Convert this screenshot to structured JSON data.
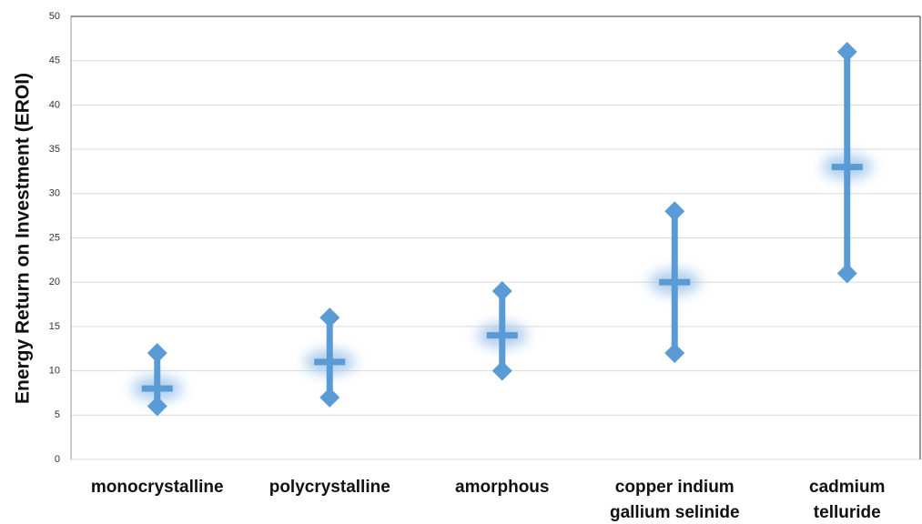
{
  "chart_data": {
    "type": "range",
    "y_axis_label": "Energy Return on Investment (EROI)",
    "categories": [
      "monocrystalline",
      "polycrystalline",
      "amorphous",
      "copper indium gallium selinide",
      "cadmium telluride"
    ],
    "high": [
      12,
      16,
      19,
      28,
      46
    ],
    "mid": [
      8,
      11,
      14,
      20,
      33
    ],
    "low": [
      6,
      7,
      10,
      12,
      21
    ],
    "color": "#5b9bd5",
    "ylim": [
      0,
      50
    ],
    "yticks": [
      0,
      5,
      10,
      15,
      20,
      25,
      30,
      35,
      40,
      45,
      50
    ],
    "grid": true
  }
}
